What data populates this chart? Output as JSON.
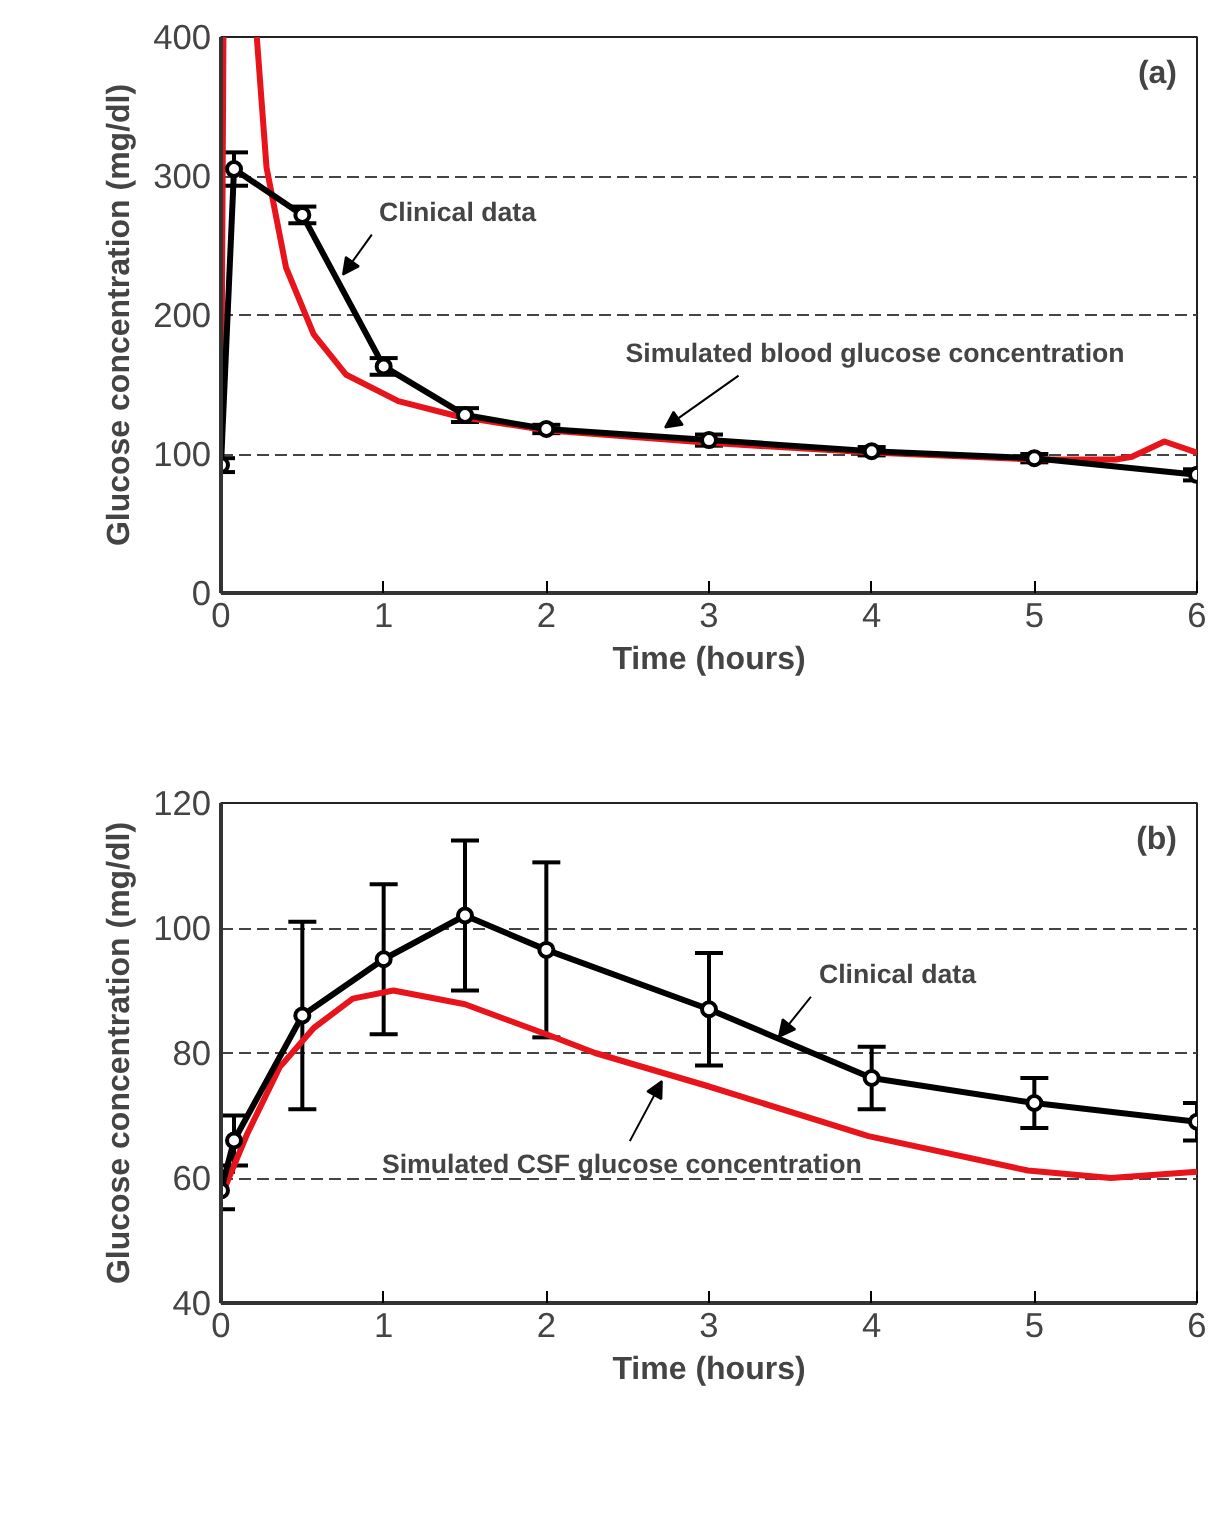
{
  "chart_data": [
    {
      "type": "line",
      "xlabel": "Time (hours)",
      "ylabel": "Glucose concentration (mg/dl)",
      "xlim": [
        0,
        6
      ],
      "ylim": [
        0,
        400
      ],
      "xticks": [
        0,
        1,
        2,
        3,
        4,
        5,
        6
      ],
      "yticks": [
        0,
        100,
        200,
        300,
        400
      ],
      "grid": "y",
      "line_style": "solid",
      "series": [
        {
          "color": "#e8141b",
          "marker": "none",
          "x": [
            0,
            0.015,
            0.1,
            0.22,
            0.28,
            0.4,
            0.57,
            0.77,
            1.09,
            1.46,
            2,
            3,
            4,
            5,
            5.5,
            5.6,
            5.8,
            6
          ],
          "values": [
            92,
            400,
            null,
            400,
            306,
            234,
            186,
            157,
            138,
            127,
            117,
            108,
            101,
            96,
            96,
            98,
            109,
            101
          ]
        },
        {
          "color": "#000000",
          "marker": "circle",
          "x": [
            0,
            0.08,
            0.5,
            1,
            1.5,
            2,
            3,
            4,
            5,
            6
          ],
          "values": [
            92,
            305,
            272,
            163,
            128,
            118,
            110,
            102,
            97,
            85
          ],
          "errors": [
            5,
            12,
            6,
            6,
            5,
            3,
            4,
            3,
            3,
            4
          ]
        }
      ],
      "annotations": [
        "(a)",
        {
          "text": "Clinical data",
          "x": 0.75,
          "y": 229
        },
        {
          "text": "Simulated blood glucose concentration",
          "x": 2.73,
          "y": 119
        }
      ]
    },
    {
      "type": "line",
      "xlabel": "Time (hours)",
      "ylabel": "Glucose concentration (mg/dl)",
      "xlim": [
        0,
        6
      ],
      "ylim": [
        40,
        120
      ],
      "xticks": [
        0,
        1,
        2,
        3,
        4,
        5,
        6
      ],
      "yticks": [
        40,
        60,
        80,
        100,
        120
      ],
      "grid": "y",
      "line_style": "solid",
      "series": [
        {
          "color": "#e8141b",
          "marker": "none",
          "x": [
            0,
            0.16,
            0.36,
            0.57,
            0.81,
            1.06,
            1.5,
            2,
            2.3,
            2.98,
            3.98,
            4.96,
            5.47,
            6
          ],
          "values": [
            57,
            67,
            77.7,
            84,
            88.7,
            90,
            87.8,
            83,
            80,
            74.8,
            66.7,
            61.2,
            60,
            61
          ]
        },
        {
          "color": "#000000",
          "marker": "circle",
          "x": [
            0,
            0.08,
            0.5,
            1,
            1.5,
            2,
            3,
            4,
            5,
            6
          ],
          "values": [
            58,
            66,
            86,
            95,
            102,
            96.5,
            87,
            76,
            72,
            69
          ],
          "errors": [
            3,
            4,
            15,
            12,
            12,
            14,
            9,
            5,
            4,
            3
          ]
        }
      ],
      "annotations": [
        "(b)",
        {
          "text": "Clinical data",
          "x": 3.43,
          "y": 82.6
        },
        {
          "text": "Simulated CSF glucose concentration",
          "x": 2.71,
          "y": 75.5
        }
      ]
    }
  ]
}
